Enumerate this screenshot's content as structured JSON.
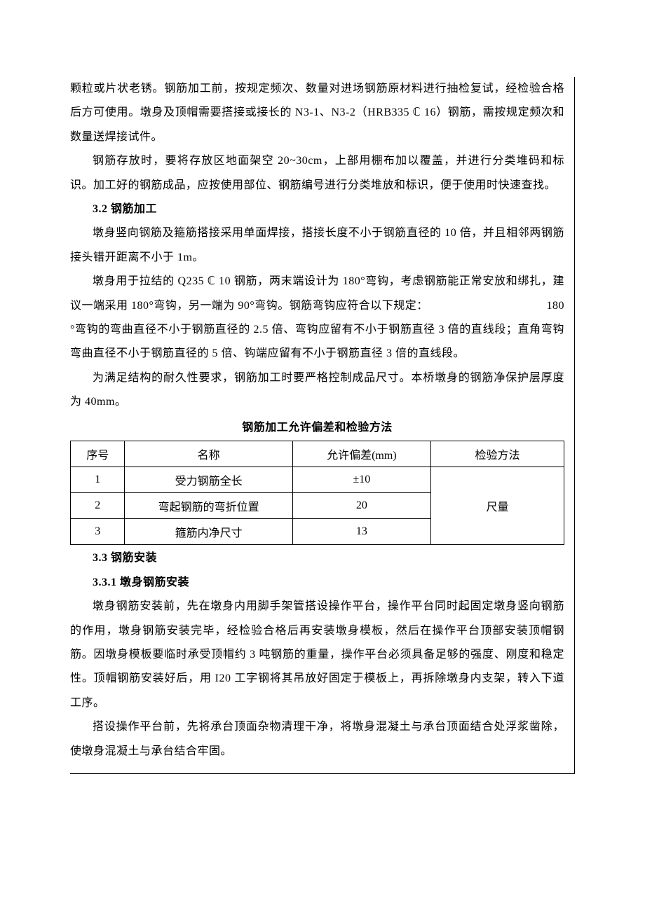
{
  "paragraphs": {
    "p1": "颗粒或片状老锈。钢筋加工前，按规定频次、数量对进场钢筋原材料进行抽检复试，经检验合格后方可使用。墩身及顶帽需要搭接或接长的 N3-1、N3-2（HRB335 ℂ 16）钢筋，需按规定频次和数量送焊接试件。",
    "p2": "钢筋存放时，要将存放区地面架空 20~30cm，上部用棚布加以覆盖，并进行分类堆码和标识。加工好的钢筋成品，应按使用部位、钢筋编号进行分类堆放和标识，便于使用时快速查找。",
    "h1": "3.2 钢筋加工",
    "p3": "墩身竖向钢筋及箍筋搭接采用单面焊接，搭接长度不小于钢筋直径的 10 倍，并且相邻两钢筋接头错开距离不小于 1m。",
    "p4a": "墩身用于拉结的 Q235 ℂ 10 钢筋，两末端设计为 180°弯钩，考虑钢筋能正常安放和绑扎，建议一端采用 180°弯钩，另一端为 90°弯钩。钢筋弯钩应符合以下规定：",
    "p4b": "180°弯钩的弯曲直径不小于钢筋直径的 2.5 倍、弯钩应留有不小于钢筋直径 3 倍的直线段；直角弯钩弯曲直径不小于钢筋直径的 5 倍、钩端应留有不小于钢筋直径 3 倍的直线段。",
    "p5": "为满足结构的耐久性要求，钢筋加工时要严格控制成品尺寸。本桥墩身的钢筋净保护层厚度为 40mm。",
    "table_title": "钢筋加工允许偏差和检验方法",
    "h2": "3.3 钢筋安装",
    "h3": "3.3.1 墩身钢筋安装",
    "p6": "墩身钢筋安装前，先在墩身内用脚手架管搭设操作平台，操作平台同时起固定墩身竖向钢筋的作用，墩身钢筋安装完毕，经检验合格后再安装墩身模板，然后在操作平台顶部安装顶帽钢筋。因墩身模板要临时承受顶帽约 3 吨钢筋的重量，操作平台必须具备足够的强度、刚度和稳定性。顶帽钢筋安装好后，用 I20 工字钢将其吊放好固定于模板上，再拆除墩身内支架，转入下道工序。",
    "p7": "搭设操作平台前，先将承台顶面杂物清理干净，将墩身混凝土与承台顶面结合处浮浆凿除，使墩身混凝土与承台结合牢固。"
  },
  "table": {
    "headers": {
      "c1": "序号",
      "c2": "名称",
      "c3": "允许偏差(mm)",
      "c4": "检验方法"
    },
    "rows": [
      {
        "num": "1",
        "name": "受力钢筋全长",
        "tol": "±10"
      },
      {
        "num": "2",
        "name": "弯起钢筋的弯折位置",
        "tol": "20"
      },
      {
        "num": "3",
        "name": "箍筋内净尺寸",
        "tol": "13"
      }
    ],
    "method": "尺量"
  },
  "style": {
    "body_font_size": 16,
    "line_height": 2.15,
    "text_color": "#000000",
    "background_color": "#ffffff",
    "border_color": "#000000"
  }
}
